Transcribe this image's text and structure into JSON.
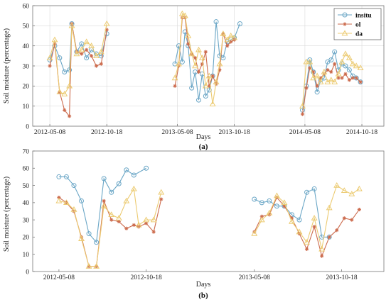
{
  "colors": {
    "insitu": "#6aa6c6",
    "ol": "#cc6b4d",
    "da": "#eccb72"
  },
  "chart_data": [
    {
      "type": "line",
      "panel_label": "(a)",
      "xlabel": "Days",
      "ylabel": "Soil moisture (percentage)",
      "xlim": [
        "2012-03-20",
        "2014-12-20"
      ],
      "ylim": [
        0,
        60
      ],
      "yticks": [
        0,
        10,
        20,
        30,
        40,
        50,
        60
      ],
      "xticks": [
        "2012-05-08",
        "2012-10-18",
        "2013-05-08",
        "2013-10-18",
        "2014-05-08",
        "2014-10-18"
      ],
      "grid": true,
      "legend": {
        "placement": "top-right",
        "entries": [
          "insitu",
          "ol",
          "da"
        ]
      },
      "series": [
        {
          "name": "insitu",
          "marker": "circle",
          "segments": [
            {
              "x": [
                "2012-05-08",
                "2012-05-22",
                "2012-06-05",
                "2012-06-19",
                "2012-07-03",
                "2012-07-10",
                "2012-07-24",
                "2012-08-07",
                "2012-08-21",
                "2012-09-04",
                "2012-09-18",
                "2012-10-02",
                "2012-10-18"
              ],
              "y": [
                33,
                40,
                34,
                27,
                28,
                51,
                37,
                41,
                34,
                38,
                36,
                35,
                46
              ]
            },
            {
              "x": [
                "2013-05-01",
                "2013-05-12",
                "2013-05-22",
                "2013-05-30",
                "2013-06-08",
                "2013-06-18",
                "2013-06-28",
                "2013-07-08",
                "2013-07-18",
                "2013-07-28",
                "2013-08-07",
                "2013-08-17",
                "2013-08-27",
                "2013-09-06",
                "2013-09-16",
                "2013-09-28",
                "2013-10-08",
                "2013-10-18",
                "2013-11-03"
              ],
              "y": [
                31,
                40,
                32,
                47,
                40,
                19,
                27,
                13,
                26,
                15,
                18,
                25,
                52,
                35,
                34,
                42,
                43,
                44,
                51
              ]
            },
            {
              "x": [
                "2014-05-01",
                "2014-05-12",
                "2014-05-22",
                "2014-06-01",
                "2014-06-12",
                "2014-06-22",
                "2014-07-02",
                "2014-07-12",
                "2014-07-22",
                "2014-08-01",
                "2014-08-12",
                "2014-08-22",
                "2014-09-01",
                "2014-09-12",
                "2014-09-22",
                "2014-10-02",
                "2014-10-14"
              ],
              "y": [
                8,
                20,
                33,
                27,
                17,
                23,
                24,
                32,
                33,
                37,
                28,
                31,
                30,
                28,
                25,
                24,
                22
              ]
            }
          ]
        },
        {
          "name": "ol",
          "marker": "asterisk",
          "segments": [
            {
              "x": [
                "2012-05-08",
                "2012-05-22",
                "2012-06-05",
                "2012-06-19",
                "2012-07-03",
                "2012-07-10",
                "2012-07-24",
                "2012-08-07",
                "2012-08-21",
                "2012-09-04",
                "2012-09-18",
                "2012-10-02",
                "2012-10-18"
              ],
              "y": [
                30,
                41,
                17,
                8,
                5,
                51,
                37,
                36,
                38,
                35,
                30,
                31,
                48
              ]
            },
            {
              "x": [
                "2013-05-01",
                "2013-05-12",
                "2013-05-22",
                "2013-05-30",
                "2013-06-08",
                "2013-06-18",
                "2013-06-28",
                "2013-07-08",
                "2013-07-18",
                "2013-07-28",
                "2013-08-07",
                "2013-08-17",
                "2013-08-27",
                "2013-09-06",
                "2013-09-16",
                "2013-09-28",
                "2013-10-08",
                "2013-10-18"
              ],
              "y": [
                20,
                30,
                54,
                54,
                41,
                36,
                34,
                27,
                31,
                37,
                20,
                25,
                21,
                28,
                46,
                40,
                42,
                43
              ]
            },
            {
              "x": [
                "2014-05-01",
                "2014-05-12",
                "2014-05-22",
                "2014-06-01",
                "2014-06-12",
                "2014-06-22",
                "2014-07-02",
                "2014-07-12",
                "2014-07-22",
                "2014-08-01",
                "2014-08-12",
                "2014-08-22",
                "2014-09-01",
                "2014-09-12",
                "2014-09-22",
                "2014-10-02",
                "2014-10-14"
              ],
              "y": [
                6,
                19,
                29,
                27,
                20,
                24,
                26,
                28,
                27,
                31,
                24,
                24,
                26,
                23,
                24,
                24,
                22
              ]
            }
          ]
        },
        {
          "name": "da",
          "marker": "triangle",
          "segments": [
            {
              "x": [
                "2012-05-08",
                "2012-05-22",
                "2012-06-05",
                "2012-06-19",
                "2012-07-03",
                "2012-07-10",
                "2012-07-24",
                "2012-08-07",
                "2012-08-21",
                "2012-09-04",
                "2012-09-18",
                "2012-10-02",
                "2012-10-18"
              ],
              "y": [
                34,
                43,
                17,
                16,
                20,
                50,
                36,
                38,
                42,
                40,
                35,
                37,
                51
              ]
            },
            {
              "x": [
                "2013-05-01",
                "2013-05-12",
                "2013-05-22",
                "2013-05-30",
                "2013-06-08",
                "2013-06-18",
                "2013-06-28",
                "2013-07-08",
                "2013-07-18",
                "2013-07-28",
                "2013-08-07",
                "2013-08-17",
                "2013-08-27",
                "2013-09-06",
                "2013-09-16",
                "2013-09-28",
                "2013-10-08",
                "2013-10-18"
              ],
              "y": [
                24,
                31,
                56,
                55,
                45,
                36,
                30,
                38,
                34,
                20,
                25,
                11,
                22,
                31,
                46,
                43,
                45,
                44
              ]
            },
            {
              "x": [
                "2014-05-01",
                "2014-05-12",
                "2014-05-22",
                "2014-06-01",
                "2014-06-12",
                "2014-06-22",
                "2014-07-02",
                "2014-07-12",
                "2014-07-22",
                "2014-08-01",
                "2014-08-12",
                "2014-08-22",
                "2014-09-01",
                "2014-09-12",
                "2014-09-22",
                "2014-10-02",
                "2014-10-14"
              ],
              "y": [
                10,
                32,
                32,
                24,
                25,
                22,
                27,
                22,
                23,
                22,
                26,
                32,
                36,
                34,
                31,
                30,
                29
              ]
            }
          ]
        }
      ]
    },
    {
      "type": "line",
      "panel_label": "(b)",
      "xlabel": "Days",
      "ylabel": "Soil moisture (percentage)",
      "xlim": [
        "2012-03-20",
        "2014-01-05"
      ],
      "ylim": [
        0,
        70
      ],
      "yticks": [
        0,
        10,
        20,
        30,
        40,
        50,
        60,
        70
      ],
      "xticks": [
        "2012-05-08",
        "2012-10-18",
        "2013-05-08",
        "2013-10-18"
      ],
      "grid": false,
      "series": [
        {
          "name": "insitu",
          "marker": "circle",
          "segments": [
            {
              "x": [
                "2012-05-08",
                "2012-05-22",
                "2012-06-05",
                "2012-06-19",
                "2012-07-03",
                "2012-07-17",
                "2012-07-31",
                "2012-08-14",
                "2012-08-28",
                "2012-09-11",
                "2012-09-25",
                "2012-10-18"
              ],
              "y": [
                55,
                55,
                50,
                41,
                22,
                17,
                54,
                46,
                51,
                59,
                56,
                60
              ]
            },
            {
              "x": [
                "2013-05-08",
                "2013-05-22",
                "2013-06-05",
                "2013-06-19",
                "2013-07-03",
                "2013-07-17",
                "2013-07-31",
                "2013-08-14",
                "2013-08-28",
                "2013-09-11",
                "2013-09-25"
              ],
              "y": [
                42,
                40,
                41,
                38,
                38,
                33,
                30,
                46,
                48,
                20,
                20
              ]
            }
          ]
        },
        {
          "name": "ol",
          "marker": "asterisk",
          "segments": [
            {
              "x": [
                "2012-05-08",
                "2012-05-22",
                "2012-06-05",
                "2012-06-19",
                "2012-07-03",
                "2012-07-17",
                "2012-07-31",
                "2012-08-14",
                "2012-08-28",
                "2012-09-11",
                "2012-09-25",
                "2012-10-04",
                "2012-10-18",
                "2012-11-01",
                "2012-11-15"
              ],
              "y": [
                43,
                40,
                35,
                20,
                3,
                3,
                41,
                30,
                29,
                25,
                27,
                26,
                28,
                23,
                42
              ]
            },
            {
              "x": [
                "2013-05-08",
                "2013-05-22",
                "2013-06-05",
                "2013-06-19",
                "2013-07-03",
                "2013-07-17",
                "2013-07-31",
                "2013-08-14",
                "2013-08-28",
                "2013-09-11",
                "2013-09-25",
                "2013-10-09",
                "2013-10-23",
                "2013-11-06",
                "2013-11-20"
              ],
              "y": [
                23,
                32,
                33,
                43,
                38,
                31,
                22,
                13,
                26,
                9,
                20,
                24,
                31,
                30,
                36
              ]
            }
          ]
        },
        {
          "name": "da",
          "marker": "triangle",
          "segments": [
            {
              "x": [
                "2012-05-08",
                "2012-05-22",
                "2012-06-05",
                "2012-06-19",
                "2012-07-03",
                "2012-07-17",
                "2012-07-31",
                "2012-08-14",
                "2012-08-28",
                "2012-09-11",
                "2012-09-25",
                "2012-10-04",
                "2012-10-18",
                "2012-11-01",
                "2012-11-15"
              ],
              "y": [
                41,
                40,
                36,
                19,
                3,
                3,
                38,
                33,
                31,
                41,
                48,
                27,
                30,
                30,
                46
              ]
            },
            {
              "x": [
                "2013-05-08",
                "2013-05-22",
                "2013-06-05",
                "2013-06-19",
                "2013-07-03",
                "2013-07-17",
                "2013-07-31",
                "2013-08-14",
                "2013-08-28",
                "2013-09-11",
                "2013-09-25",
                "2013-10-09",
                "2013-10-23",
                "2013-11-06",
                "2013-11-20"
              ],
              "y": [
                22,
                30,
                34,
                44,
                40,
                29,
                23,
                17,
                31,
                13,
                37,
                50,
                47,
                45,
                48
              ]
            }
          ]
        }
      ]
    }
  ]
}
